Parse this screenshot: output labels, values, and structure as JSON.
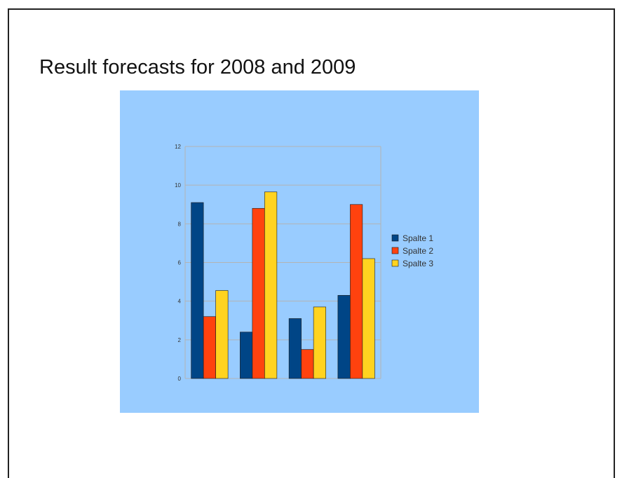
{
  "slide": {
    "title": "Result forecasts for 2008 and 2009"
  },
  "colors": {
    "chart_background": "#99ccff",
    "gridline": "#b3b3b3",
    "series": [
      "#004586",
      "#ff420e",
      "#ffd320"
    ]
  },
  "chart_data": {
    "type": "bar",
    "categories": [
      "",
      "",
      "",
      ""
    ],
    "series": [
      {
        "name": "Spalte 1",
        "values": [
          9.1,
          2.4,
          3.1,
          4.3
        ]
      },
      {
        "name": "Spalte 2",
        "values": [
          3.2,
          8.8,
          1.5,
          9.0
        ]
      },
      {
        "name": "Spalte 3",
        "values": [
          4.55,
          9.65,
          3.7,
          6.2
        ]
      }
    ],
    "yticks": [
      "0",
      "2",
      "4",
      "6",
      "8",
      "10",
      "12"
    ],
    "ylim": [
      0,
      12
    ],
    "grid": true,
    "legend": "right"
  }
}
